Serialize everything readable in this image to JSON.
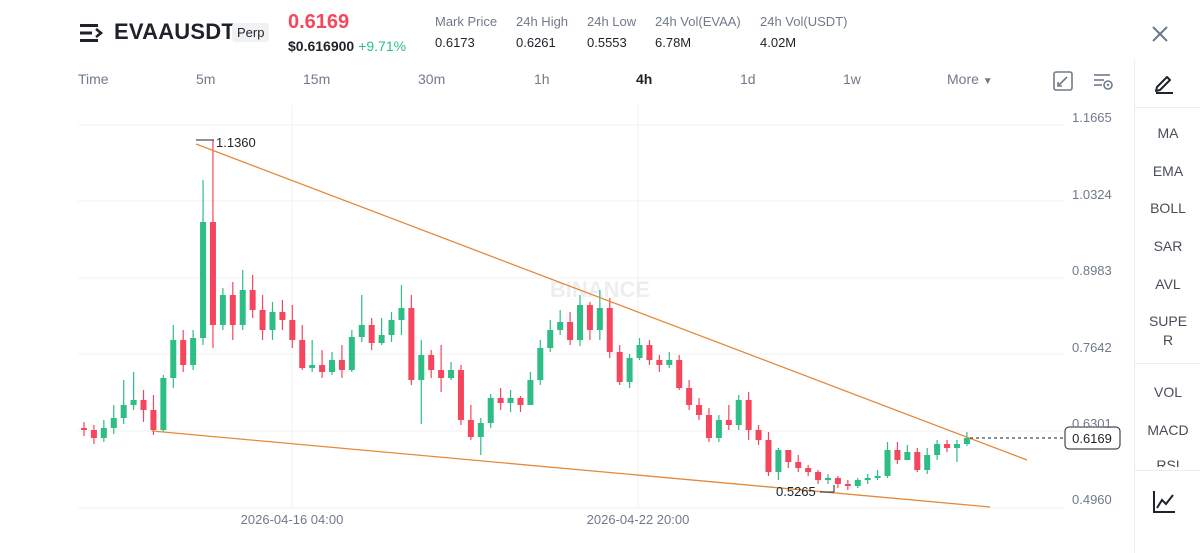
{
  "header": {
    "symbol": "EVAAUSDT",
    "contract_type": "Perp",
    "last_price": "0.6169",
    "usd_price": "$0.616900",
    "change_percent": "+9.71%",
    "stats": [
      {
        "label": "Mark Price",
        "value": "0.6173"
      },
      {
        "label": "24h High",
        "value": "0.6261"
      },
      {
        "label": "24h Low",
        "value": "0.5553"
      },
      {
        "label": "24h Vol(EVAA)",
        "value": "6.78M"
      },
      {
        "label": "24h Vol(USDT)",
        "value": "4.02M"
      }
    ]
  },
  "timeframes": {
    "items": [
      "Time",
      "5m",
      "15m",
      "30m",
      "1h",
      "4h",
      "1d",
      "1w"
    ],
    "active": "4h",
    "more_label": "More"
  },
  "chart": {
    "watermark": "BINANCE",
    "y_ticks": [
      "1.1665",
      "1.0324",
      "0.8983",
      "0.7642",
      "0.6301",
      "0.4960"
    ],
    "x_ticks": [
      "2026-04-16 04:00",
      "2026-04-22 20:00"
    ],
    "high_label": "1.1360",
    "low_label": "0.5265",
    "current_price_tag": "0.6169",
    "colors": {
      "up": "#2ebd85",
      "down": "#f6465d",
      "trendline": "#e58a3a"
    }
  },
  "sidebar": {
    "indicators": [
      "MA",
      "EMA",
      "BOLL",
      "SAR",
      "AVL",
      "SUPER",
      "VOL",
      "MACD",
      "RSI"
    ],
    "icons": [
      "pencil-icon",
      "chart-line-icon"
    ]
  }
}
